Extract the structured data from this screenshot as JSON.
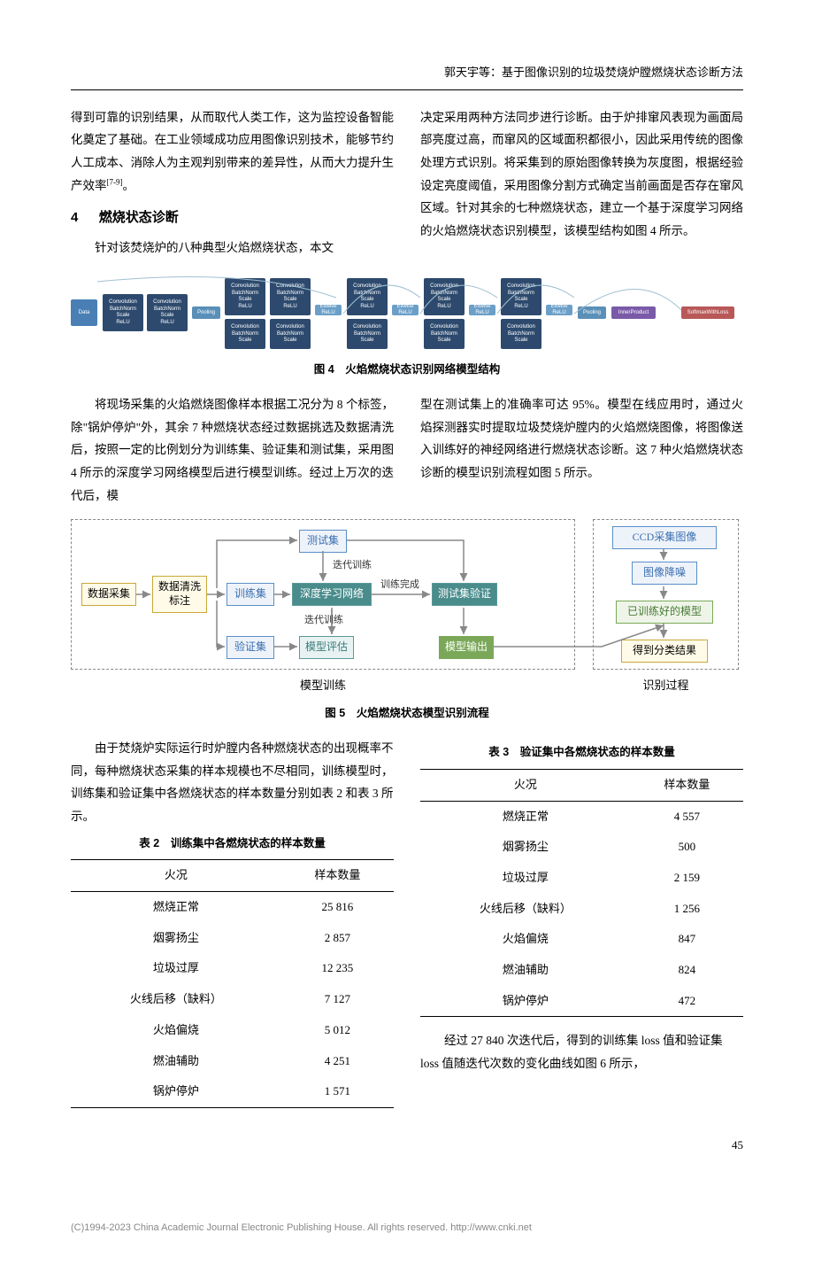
{
  "page_header": "郭天宇等：基于图像识别的垃圾焚烧炉膛燃烧状态诊断方法",
  "intro": {
    "col1_p1": "得到可靠的识别结果，从而取代人类工作，这为监控设备智能化奠定了基础。在工业领域成功应用图像识别技术，能够节约人工成本、消除人为主观判别带来的差异性，从而大力提升生产效率",
    "col1_p1_cite": "[7-9]",
    "col1_p1_end": "。",
    "section_no": "4",
    "section_title": "燃烧状态诊断",
    "col1_p2": "针对该焚烧炉的八种典型火焰燃烧状态，本文",
    "col2_p1": "决定采用两种方法同步进行诊断。由于炉排窜风表现为画面局部亮度过高，而窜风的区域面积都很小，因此采用传统的图像处理方式识别。将采集到的原始图像转换为灰度图，根据经验设定亮度阈值，采用图像分割方式确定当前画面是否存在窜风区域。针对其余的七种燃烧状态，建立一个基于深度学习网络的火焰燃烧状态识别模型，该模型结构如图 4 所示。"
  },
  "fig4": {
    "caption": "图 4　火焰燃烧状态识别网络模型结构",
    "colors": {
      "data": "#4a7fb5",
      "block_dark": "#2d4a6e",
      "pool": "#5a8fb8",
      "elt": "#6b9fc8",
      "inner": "#7a5aa8",
      "soft": "#b85858",
      "conn": "#a0c0d0"
    },
    "labels": {
      "data": "Data",
      "cbsr": "Convolution\nBatchNorm\nScale\nReLU",
      "cbs": "Convolution\nBatchNorm\nScale",
      "pool": "Pooling",
      "elt": "Eltwise\nReLU",
      "ip": "InnerProduct",
      "soft": "SoftmaxWithLoss"
    }
  },
  "mid": {
    "col1": "将现场采集的火焰燃烧图像样本根据工况分为 8 个标签，除\"锅炉停炉\"外，其余 7 种燃烧状态经过数据挑选及数据清洗后，按照一定的比例划分为训练集、验证集和测试集，采用图 4 所示的深度学习网络模型后进行模型训练。经过上万次的迭代后，模",
    "col2": "型在测试集上的准确率可达 95%。模型在线应用时，通过火焰探测器实时提取垃圾焚烧炉膛内的火焰燃烧图像，将图像送入训练好的神经网络进行燃烧状态诊断。这 7 种火焰燃烧状态诊断的模型识别流程如图 5 所示。"
  },
  "fig5": {
    "caption": "图 5　火焰燃烧状态模型识别流程",
    "boxes": {
      "data_collect": "数据采集",
      "data_clean": "数据清洗\n标注",
      "train_set": "训练集",
      "test_set": "测试集",
      "val_set": "验证集",
      "dl_net": "深度学习网络",
      "model_eval": "模型评估",
      "test_val": "测试集验证",
      "model_out": "模型输出",
      "ccd": "CCD采集图像",
      "denoise": "图像降噪",
      "trained_model": "已训练好的模型",
      "result": "得到分类结果"
    },
    "edge_labels": {
      "iter_train1": "迭代训练",
      "iter_train2": "迭代训练",
      "train_done": "训练完成"
    },
    "group_labels": {
      "train": "模型训练",
      "infer": "识别过程"
    },
    "colors": {
      "yellow_border": "#c9a838",
      "yellow_fill": "#fffbe8",
      "blue_border": "#5a8fc8",
      "teal_fill": "#4a8c8c",
      "green_fill": "#7aa858",
      "dash": "#888888"
    }
  },
  "para_before_tables": "由于焚烧炉实际运行时炉膛内各种燃烧状态的出现概率不同，每种燃烧状态采集的样本规模也不尽相同，训练模型时，训练集和验证集中各燃烧状态的样本数量分别如表 2 和表 3 所示。",
  "table2": {
    "caption": "表 2　训练集中各燃烧状态的样本数量",
    "columns": [
      "火况",
      "样本数量"
    ],
    "rows": [
      [
        "燃烧正常",
        "25 816"
      ],
      [
        "烟雾扬尘",
        "2 857"
      ],
      [
        "垃圾过厚",
        "12 235"
      ],
      [
        "火线后移（缺料）",
        "7 127"
      ],
      [
        "火焰偏烧",
        "5 012"
      ],
      [
        "燃油辅助",
        "4 251"
      ],
      [
        "锅炉停炉",
        "1 571"
      ]
    ]
  },
  "table3": {
    "caption": "表 3　验证集中各燃烧状态的样本数量",
    "columns": [
      "火况",
      "样本数量"
    ],
    "rows": [
      [
        "燃烧正常",
        "4 557"
      ],
      [
        "烟雾扬尘",
        "500"
      ],
      [
        "垃圾过厚",
        "2 159"
      ],
      [
        "火线后移（缺料）",
        "1 256"
      ],
      [
        "火焰偏烧",
        "847"
      ],
      [
        "燃油辅助",
        "824"
      ],
      [
        "锅炉停炉",
        "472"
      ]
    ]
  },
  "para_after_table3": "经过 27 840 次迭代后，得到的训练集 loss 值和验证集 loss 值随迭代次数的变化曲线如图 6 所示，",
  "page_number": "45",
  "footer": "(C)1994-2023 China Academic Journal Electronic Publishing House. All rights reserved.    http://www.cnki.net"
}
